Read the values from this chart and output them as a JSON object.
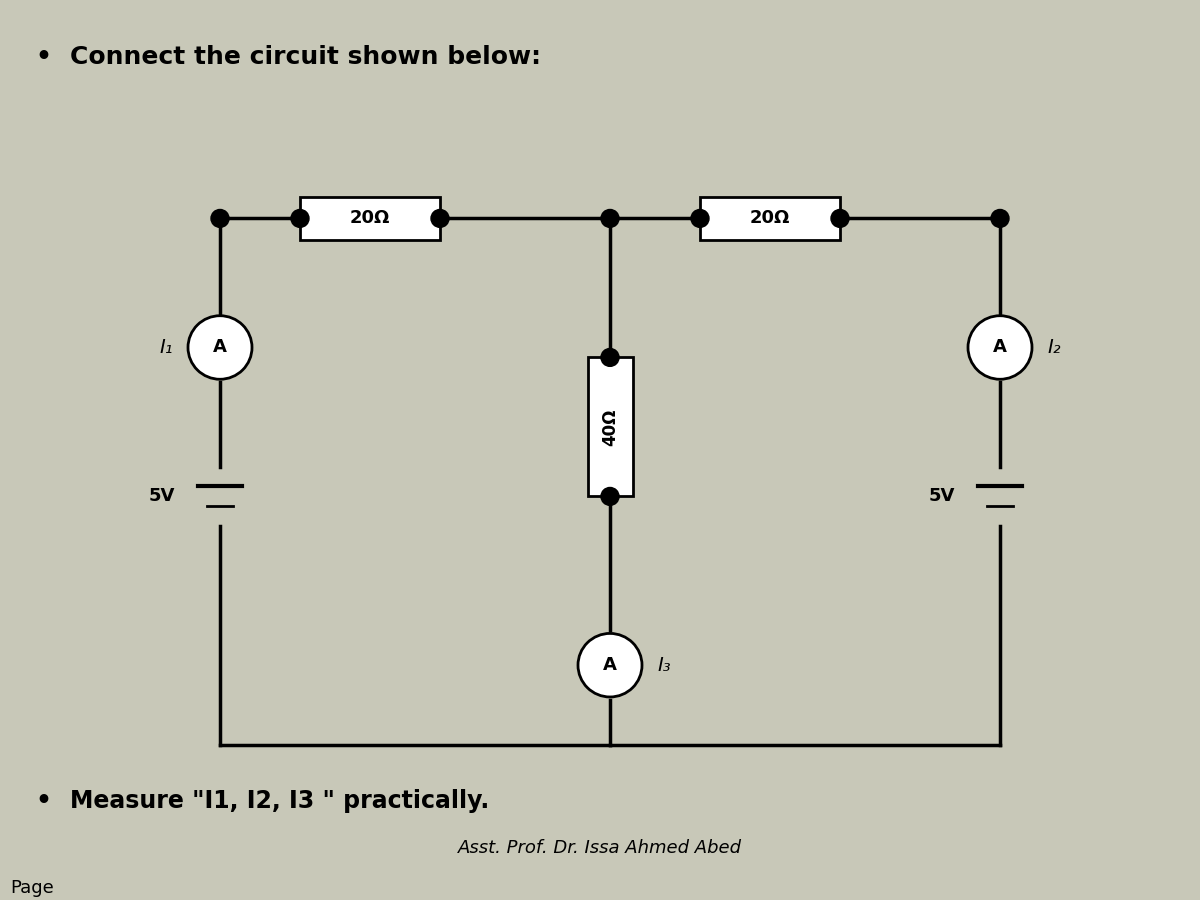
{
  "title": "Connect the circuit shown below:",
  "bottom_text": "Measure \"I1, I2, I3 \" practically.",
  "footer_text": "Asst. Prof. Dr. Issa Ahmed Abed",
  "page_text": "Page",
  "bg_color": "#c8c8b8",
  "circuit_bg": "#ffffff",
  "resistor_20_label": "20Ω",
  "resistor_40_label": "40Ω",
  "battery_label": "5V",
  "ammeter_label": "A",
  "I1_label": "I₁",
  "I2_label": "I₂",
  "I3_label": "I₃"
}
